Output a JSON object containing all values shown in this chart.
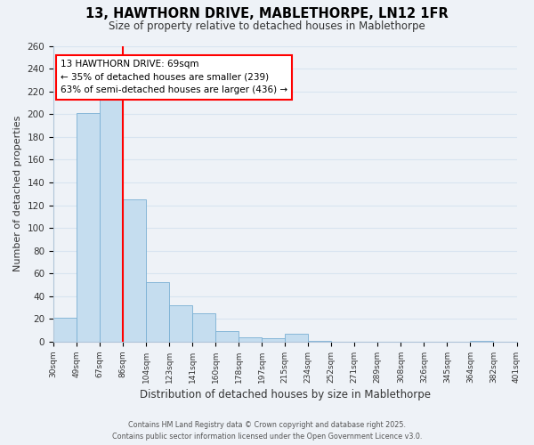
{
  "title": "13, HAWTHORN DRIVE, MABLETHORPE, LN12 1FR",
  "subtitle": "Size of property relative to detached houses in Mablethorpe",
  "xlabel": "Distribution of detached houses by size in Mablethorpe",
  "ylabel": "Number of detached properties",
  "bar_color": "#c5ddef",
  "bar_edge_color": "#7ab0d4",
  "background_color": "#eef2f7",
  "grid_color": "#d8e4f0",
  "bin_labels": [
    "30sqm",
    "49sqm",
    "67sqm",
    "86sqm",
    "104sqm",
    "123sqm",
    "141sqm",
    "160sqm",
    "178sqm",
    "197sqm",
    "215sqm",
    "234sqm",
    "252sqm",
    "271sqm",
    "289sqm",
    "308sqm",
    "326sqm",
    "345sqm",
    "364sqm",
    "382sqm",
    "401sqm"
  ],
  "values": [
    21,
    201,
    214,
    125,
    52,
    32,
    25,
    9,
    4,
    3,
    7,
    1,
    0,
    0,
    0,
    0,
    0,
    0,
    1,
    0
  ],
  "ylim": [
    0,
    260
  ],
  "yticks": [
    0,
    20,
    40,
    60,
    80,
    100,
    120,
    140,
    160,
    180,
    200,
    220,
    240,
    260
  ],
  "property_line_bin_index": 2,
  "annotation_title": "13 HAWTHORN DRIVE: 69sqm",
  "annotation_line1": "← 35% of detached houses are smaller (239)",
  "annotation_line2": "63% of semi-detached houses are larger (436) →",
  "annotation_box_color": "white",
  "annotation_box_edge": "red",
  "property_line_color": "red",
  "footer_line1": "Contains HM Land Registry data © Crown copyright and database right 2025.",
  "footer_line2": "Contains public sector information licensed under the Open Government Licence v3.0."
}
